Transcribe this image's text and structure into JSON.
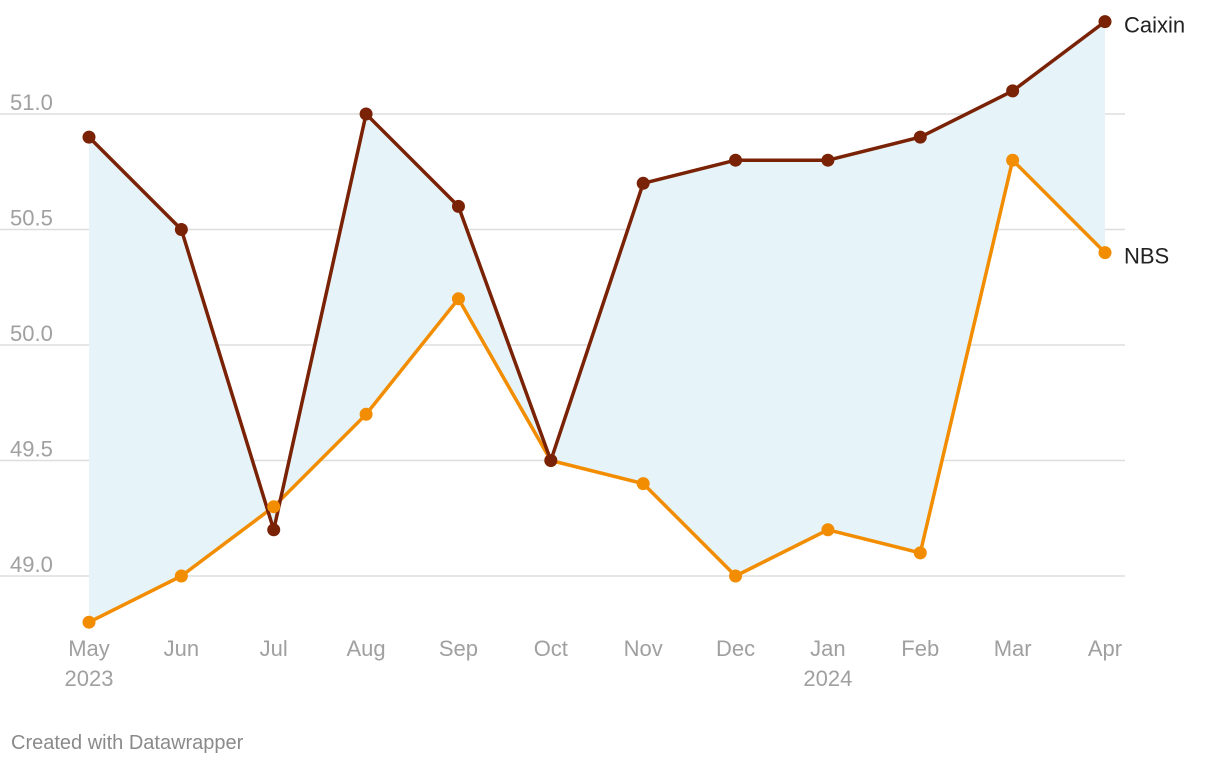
{
  "chart_data": {
    "type": "line",
    "categories": [
      "May",
      "Jun",
      "Jul",
      "Aug",
      "Sep",
      "Oct",
      "Nov",
      "Dec",
      "Jan",
      "Feb",
      "Mar",
      "Apr"
    ],
    "year_labels": [
      "2023",
      "",
      "",
      "",
      "",
      "",
      "",
      "",
      "2024",
      "",
      "",
      ""
    ],
    "series": [
      {
        "name": "Caixin",
        "values": [
          50.9,
          50.5,
          49.2,
          51.0,
          50.6,
          49.5,
          50.7,
          50.8,
          50.8,
          50.9,
          51.1,
          51.4
        ],
        "color": "#7a2206"
      },
      {
        "name": "NBS",
        "values": [
          48.8,
          49.0,
          49.3,
          49.7,
          50.2,
          49.5,
          49.4,
          49.0,
          49.2,
          49.1,
          50.8,
          50.4
        ],
        "color": "#f28c00"
      }
    ],
    "y_ticks": [
      "49.0",
      "49.5",
      "50.0",
      "50.5",
      "51.0"
    ],
    "y_tick_values": [
      49.0,
      49.5,
      50.0,
      50.5,
      51.0
    ],
    "ylim": [
      48.8,
      51.4
    ],
    "fill_between_color": "#e6f3f9",
    "grid": true,
    "legend": "direct labels at line ends"
  },
  "footer": {
    "credit": "Created with Datawrapper"
  }
}
